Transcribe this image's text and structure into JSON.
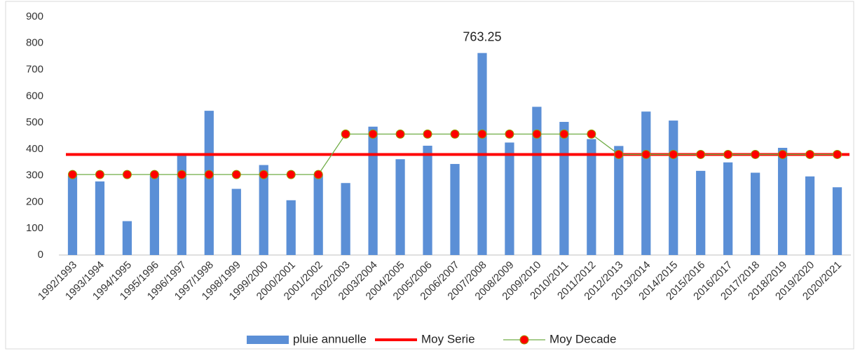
{
  "chart_data": {
    "type": "bar",
    "categories": [
      "1992/1993",
      "1993/1994",
      "1994/1995",
      "1995/1996",
      "1996/1997",
      "1997/1998",
      "1998/1999",
      "1999/2000",
      "2000/2001",
      "2001/2002",
      "2002/2003",
      "2003/2004",
      "2004/2005",
      "2005/2006",
      "2006/2007",
      "2007/2008",
      "2008/2009",
      "2009/2010",
      "2010/2011",
      "2011/2012",
      "2012/2013",
      "2013/2014",
      "2014/2015",
      "2015/2016",
      "2016/2017",
      "2017/2018",
      "2018/2019",
      "2019/2020",
      "2020/2021"
    ],
    "series": [
      {
        "name": "pluie annuelle",
        "type": "bar",
        "color": "#5b8fd6",
        "values": [
          300,
          278,
          128,
          300,
          375,
          545,
          250,
          340,
          207,
          305,
          272,
          485,
          362,
          413,
          344,
          763.25,
          425,
          560,
          503,
          438,
          412,
          542,
          508,
          318,
          350,
          311,
          405,
          297,
          256
        ]
      },
      {
        "name": "Moy Serie",
        "type": "line",
        "color": "#ff0000",
        "values": [
          380,
          380,
          380,
          380,
          380,
          380,
          380,
          380,
          380,
          380,
          380,
          380,
          380,
          380,
          380,
          380,
          380,
          380,
          380,
          380,
          380,
          380,
          380,
          380,
          380,
          380,
          380,
          380,
          380
        ]
      },
      {
        "name": "Moy Decade",
        "type": "line-marker",
        "color": "#70ad47",
        "marker_color": "#ff0000",
        "values": [
          304,
          304,
          304,
          304,
          304,
          304,
          304,
          304,
          304,
          304,
          457,
          457,
          457,
          457,
          457,
          457,
          457,
          457,
          457,
          457,
          380,
          380,
          380,
          380,
          380,
          380,
          380,
          380,
          380
        ]
      }
    ],
    "labeled_points": [
      [
        0,
        15
      ]
    ],
    "ylim": [
      0,
      900
    ],
    "yticks": [
      0,
      100,
      200,
      300,
      400,
      500,
      600,
      700,
      800,
      900
    ],
    "grid": false
  }
}
